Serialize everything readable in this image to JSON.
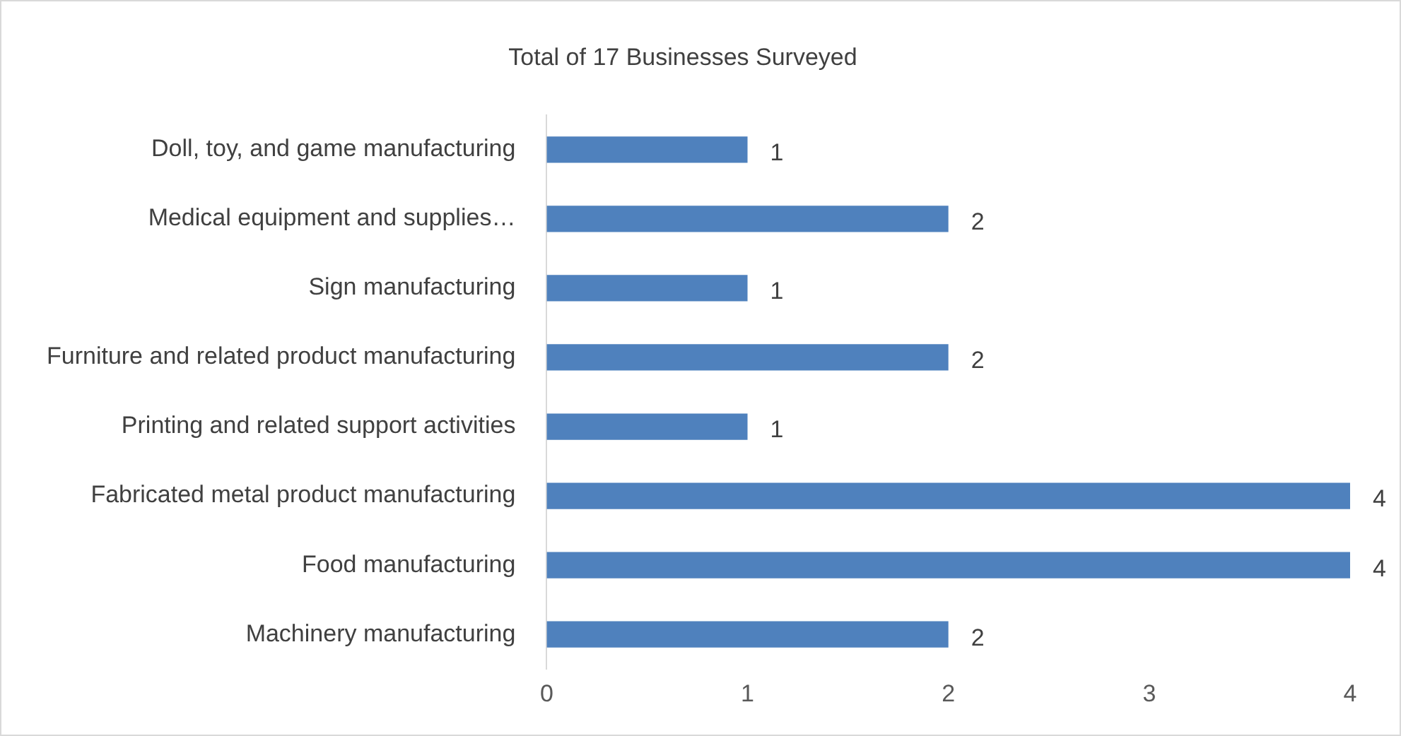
{
  "chart_data": {
    "type": "bar",
    "orientation": "horizontal",
    "title": "Total of 17 Businesses Surveyed",
    "categories": [
      "Doll, toy, and game manufacturing",
      "Medical equipment and supplies…",
      "Sign manufacturing",
      "Furniture and related product manufacturing",
      "Printing and related support activities",
      "Fabricated metal product manufacturing",
      "Food manufacturing",
      "Machinery manufacturing"
    ],
    "values": [
      1,
      2,
      1,
      2,
      1,
      4,
      4,
      2
    ],
    "color": "#4f81bd",
    "xlim": [
      0,
      4
    ],
    "xticks": [
      0,
      1,
      2,
      3,
      4
    ],
    "grid": false,
    "legend": false,
    "data_labels": true
  }
}
